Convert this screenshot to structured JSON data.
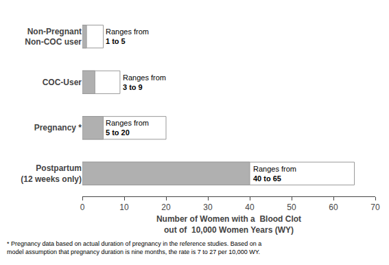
{
  "chart_data": {
    "type": "bar",
    "orientation": "horizontal",
    "categories": [
      "Non-Pregnant\nNon-COC user",
      "COC-User",
      "Pregnancy *",
      "Postpartum\n(12 weeks only)"
    ],
    "series": [
      {
        "color": "#ffffff",
        "values": [
          5,
          9,
          20,
          65
        ]
      },
      {
        "color": "#b0b0b0",
        "values": [
          1,
          3,
          5,
          40
        ]
      }
    ],
    "xlabel": "Number of Women with a  Blood Clot\nout of  10,000 Women Years (WY)",
    "xlim": [
      0,
      70
    ],
    "xticks": [
      0,
      10,
      20,
      30,
      40,
      50,
      60,
      70
    ],
    "grid": false,
    "annotations": [
      {
        "text": "Ranges from\n1 to 5",
        "x": 5.3,
        "y": "Non-Pregnant\nNon-COC user"
      },
      {
        "text": "Ranges from\n3 to 9",
        "x": 9.3,
        "y": "COC-User"
      },
      {
        "text": "Ranges from\n5 to 20",
        "x": 5.3,
        "y": "Pregnancy *"
      },
      {
        "text": "Ranges from\n40 to 65",
        "x": 40.5,
        "y": "Postpartum\n(12 weeks only)"
      }
    ],
    "footnote": "* Pregnancy data based on actual duration of pregnancy in the reference studies. Based on a\nmodel assumption that pregnancy duration is nine months, the rate is 7 to 27 per 10,000 WY."
  }
}
